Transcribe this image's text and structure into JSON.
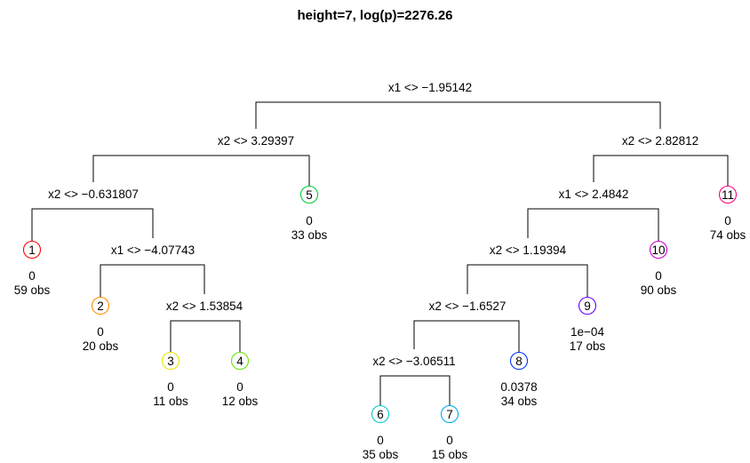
{
  "title": "height=7, log(p)=2276.26",
  "splits": [
    {
      "id": "s1",
      "label": "x1 <> −1.95142"
    },
    {
      "id": "s2",
      "label": "x2 <> 3.29397"
    },
    {
      "id": "s3",
      "label": "x2 <> 2.82812"
    },
    {
      "id": "s4",
      "label": "x2 <> −0.631807"
    },
    {
      "id": "s5",
      "label": "x1 <> −4.07743"
    },
    {
      "id": "s6",
      "label": "x2 <> 1.53854"
    },
    {
      "id": "s7",
      "label": "x1 <> 2.4842"
    },
    {
      "id": "s8",
      "label": "x2 <> 1.19394"
    },
    {
      "id": "s9",
      "label": "x2 <> −1.6527"
    },
    {
      "id": "s10",
      "label": "x2 <> −3.06511"
    }
  ],
  "leaves": [
    {
      "id": "1",
      "value": "0",
      "obs": "59 obs",
      "color": "#FF0000"
    },
    {
      "id": "2",
      "value": "0",
      "obs": "20 obs",
      "color": "#FF8C00"
    },
    {
      "id": "3",
      "value": "0",
      "obs": "11 obs",
      "color": "#E6E600"
    },
    {
      "id": "4",
      "value": "0",
      "obs": "12 obs",
      "color": "#66E600"
    },
    {
      "id": "5",
      "value": "0",
      "obs": "33 obs",
      "color": "#00CC33"
    },
    {
      "id": "6",
      "value": "0",
      "obs": "35 obs",
      "color": "#00CCCC"
    },
    {
      "id": "7",
      "value": "0",
      "obs": "15 obs",
      "color": "#00AAEE"
    },
    {
      "id": "8",
      "value": "0.0378",
      "obs": "34 obs",
      "color": "#0033FF"
    },
    {
      "id": "9",
      "value": "1e−04",
      "obs": "17 obs",
      "color": "#6600FF"
    },
    {
      "id": "10",
      "value": "0",
      "obs": "90 obs",
      "color": "#CC00CC"
    },
    {
      "id": "11",
      "value": "0",
      "obs": "74 obs",
      "color": "#FF0080"
    }
  ]
}
